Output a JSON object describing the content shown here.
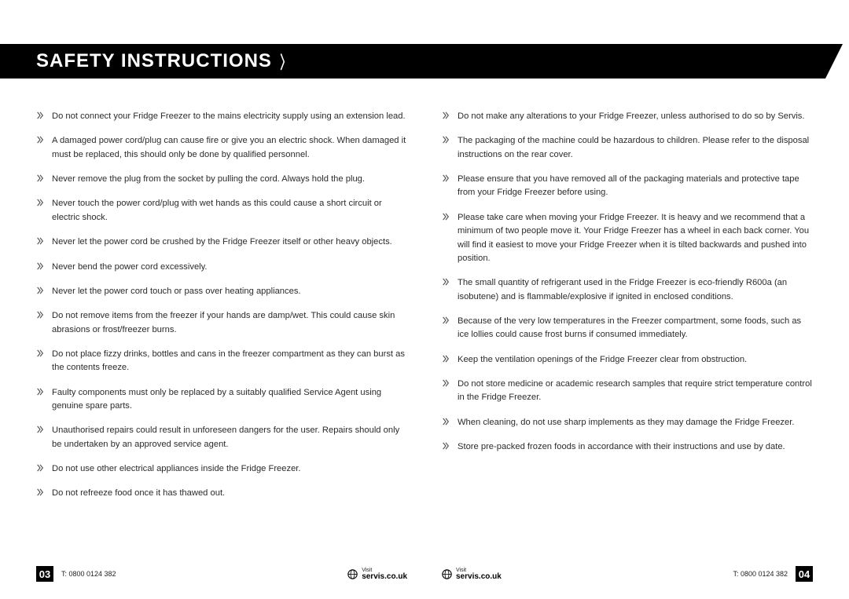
{
  "header": {
    "title": "SAFETY INSTRUCTIONS"
  },
  "colors": {
    "band": "#000000",
    "text": "#2b2b2b",
    "bulletStroke": "#444444"
  },
  "leftItems": [
    "Do not connect your Fridge Freezer to the mains electricity supply using an extension lead.",
    "A damaged power cord/plug can cause fire or give you an electric shock. When damaged it must be replaced, this should only be done by qualified personnel.",
    "Never remove the plug from the socket by pulling the cord. Always hold the plug.",
    "Never touch the power cord/plug with wet hands as this could cause a short circuit or electric shock.",
    "Never let the power cord be crushed by the Fridge Freezer itself or other heavy objects.",
    "Never bend the power cord excessively.",
    "Never let the power cord touch or pass over heating appliances.",
    "Do not remove items from the freezer if your hands are damp/wet. This could cause skin abrasions or frost/freezer burns.",
    "Do not place fizzy drinks, bottles and cans in the freezer compartment as they can burst as the contents freeze.",
    "Faulty components must only be replaced by a suitably qualified Service Agent using genuine spare parts.",
    "Unauthorised repairs could result in unforeseen dangers for the user. Repairs should only be undertaken by an approved service agent.",
    "Do not use other electrical appliances inside the Fridge Freezer.",
    "Do not refreeze food once it has thawed out."
  ],
  "rightItems": [
    "Do not make any alterations to your Fridge Freezer, unless authorised to do so by Servis.",
    "The packaging of the machine could be hazardous to children. Please refer to the disposal  instructions on the rear cover.",
    "Please ensure that you have removed all of the packaging materials and protective tape from your Fridge Freezer before using.",
    "Please take care when moving your Fridge Freezer. It is heavy and we recommend that a minimum of two people move it. Your Fridge Freezer has a wheel in each back corner. You will find it easiest to move your Fridge Freezer when it is tilted backwards and pushed into position.",
    "The small quantity of refrigerant used in the Fridge Freezer is eco-friendly R600a (an isobutene) and is flammable/explosive if ignited in enclosed conditions.",
    "Because of the very low temperatures in the Freezer compartment, some foods, such as ice lollies could cause frost burns if consumed immediately.",
    "Keep the ventilation openings of the Fridge Freezer clear from obstruction.",
    "Do not store medicine or academic research samples that require strict temperature control in the Fridge Freezer.",
    "When cleaning, do not use sharp implements as they may damage the Fridge Freezer.",
    "Store pre-packed frozen foods in accordance with their instructions and use by date."
  ],
  "footer": {
    "leftPage": "03",
    "rightPage": "04",
    "tel": "T: 0800 0124 382",
    "visitLabel": "Visit",
    "visitUrl": "servis.co.uk"
  }
}
